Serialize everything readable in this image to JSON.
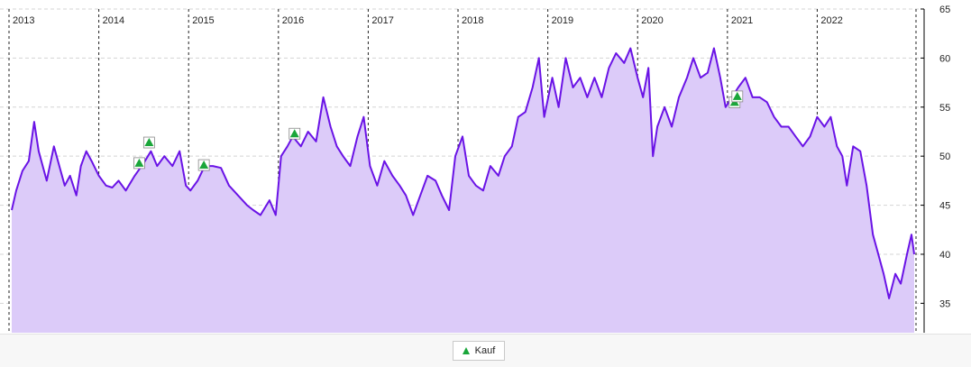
{
  "chart_data": {
    "type": "area",
    "x_labels": [
      "2013",
      "2014",
      "2015",
      "2016",
      "2017",
      "2018",
      "2019",
      "2020",
      "2021",
      "2022"
    ],
    "y_ticks": [
      35,
      40,
      45,
      50,
      55,
      60,
      65
    ],
    "ylim": [
      32,
      65
    ],
    "xlim": [
      2013.0,
      2023.1
    ],
    "grid": true,
    "legend_position": "bottom-center",
    "colors": {
      "line": "#6a13e6",
      "fill": "#dccbf9",
      "marker": "#1aa63a"
    },
    "series": [
      {
        "values": [
          [
            2013.03,
            44.5
          ],
          [
            2013.08,
            46.5
          ],
          [
            2013.15,
            48.5
          ],
          [
            2013.22,
            49.5
          ],
          [
            2013.28,
            53.5
          ],
          [
            2013.33,
            50.5
          ],
          [
            2013.42,
            47.5
          ],
          [
            2013.5,
            51
          ],
          [
            2013.56,
            49
          ],
          [
            2013.62,
            47
          ],
          [
            2013.68,
            48
          ],
          [
            2013.75,
            46
          ],
          [
            2013.8,
            49
          ],
          [
            2013.86,
            50.5
          ],
          [
            2013.92,
            49.5
          ],
          [
            2014.0,
            48
          ],
          [
            2014.08,
            47
          ],
          [
            2014.15,
            46.8
          ],
          [
            2014.22,
            47.5
          ],
          [
            2014.3,
            46.5
          ],
          [
            2014.4,
            48
          ],
          [
            2014.5,
            49.3
          ],
          [
            2014.58,
            50.5
          ],
          [
            2014.65,
            49
          ],
          [
            2014.73,
            50
          ],
          [
            2014.82,
            49
          ],
          [
            2014.9,
            50.5
          ],
          [
            2014.97,
            47
          ],
          [
            2015.02,
            46.5
          ],
          [
            2015.1,
            47.5
          ],
          [
            2015.18,
            49
          ],
          [
            2015.27,
            49
          ],
          [
            2015.36,
            48.8
          ],
          [
            2015.45,
            47
          ],
          [
            2015.55,
            46
          ],
          [
            2015.65,
            45
          ],
          [
            2015.72,
            44.5
          ],
          [
            2015.8,
            44
          ],
          [
            2015.9,
            45.5
          ],
          [
            2015.97,
            44
          ],
          [
            2016.03,
            50
          ],
          [
            2016.1,
            51
          ],
          [
            2016.16,
            52
          ],
          [
            2016.25,
            51
          ],
          [
            2016.33,
            52.5
          ],
          [
            2016.42,
            51.5
          ],
          [
            2016.5,
            56
          ],
          [
            2016.58,
            53
          ],
          [
            2016.65,
            51
          ],
          [
            2016.72,
            50
          ],
          [
            2016.8,
            49
          ],
          [
            2016.88,
            52
          ],
          [
            2016.95,
            54
          ],
          [
            2017.02,
            49
          ],
          [
            2017.1,
            47
          ],
          [
            2017.18,
            49.5
          ],
          [
            2017.27,
            48
          ],
          [
            2017.35,
            47
          ],
          [
            2017.42,
            46
          ],
          [
            2017.5,
            44
          ],
          [
            2017.58,
            46
          ],
          [
            2017.66,
            48
          ],
          [
            2017.75,
            47.5
          ],
          [
            2017.82,
            46
          ],
          [
            2017.9,
            44.5
          ],
          [
            2017.97,
            50
          ],
          [
            2018.05,
            52
          ],
          [
            2018.12,
            48
          ],
          [
            2018.2,
            47
          ],
          [
            2018.28,
            46.5
          ],
          [
            2018.36,
            49
          ],
          [
            2018.45,
            48
          ],
          [
            2018.52,
            50
          ],
          [
            2018.6,
            51
          ],
          [
            2018.67,
            54
          ],
          [
            2018.75,
            54.5
          ],
          [
            2018.83,
            57
          ],
          [
            2018.9,
            60
          ],
          [
            2018.96,
            54
          ],
          [
            2019.05,
            58
          ],
          [
            2019.12,
            55
          ],
          [
            2019.2,
            60
          ],
          [
            2019.28,
            57
          ],
          [
            2019.36,
            58
          ],
          [
            2019.44,
            56
          ],
          [
            2019.52,
            58
          ],
          [
            2019.6,
            56
          ],
          [
            2019.68,
            59
          ],
          [
            2019.76,
            60.5
          ],
          [
            2019.85,
            59.5
          ],
          [
            2019.92,
            61
          ],
          [
            2020.0,
            58
          ],
          [
            2020.06,
            56
          ],
          [
            2020.12,
            59
          ],
          [
            2020.17,
            50
          ],
          [
            2020.22,
            53
          ],
          [
            2020.3,
            55
          ],
          [
            2020.38,
            53
          ],
          [
            2020.46,
            56
          ],
          [
            2020.55,
            58
          ],
          [
            2020.62,
            60
          ],
          [
            2020.7,
            58
          ],
          [
            2020.78,
            58.5
          ],
          [
            2020.85,
            61
          ],
          [
            2020.92,
            58
          ],
          [
            2020.98,
            55
          ],
          [
            2021.05,
            56
          ],
          [
            2021.12,
            57
          ],
          [
            2021.2,
            58
          ],
          [
            2021.28,
            56
          ],
          [
            2021.36,
            56
          ],
          [
            2021.44,
            55.5
          ],
          [
            2021.52,
            54
          ],
          [
            2021.6,
            53
          ],
          [
            2021.68,
            53
          ],
          [
            2021.76,
            52
          ],
          [
            2021.84,
            51
          ],
          [
            2021.92,
            52
          ],
          [
            2022.0,
            54
          ],
          [
            2022.08,
            53
          ],
          [
            2022.15,
            54
          ],
          [
            2022.22,
            51
          ],
          [
            2022.28,
            50
          ],
          [
            2022.33,
            47
          ],
          [
            2022.4,
            51
          ],
          [
            2022.48,
            50.5
          ],
          [
            2022.55,
            47
          ],
          [
            2022.62,
            42
          ],
          [
            2022.68,
            40
          ],
          [
            2022.74,
            38
          ],
          [
            2022.8,
            35.5
          ],
          [
            2022.87,
            38
          ],
          [
            2022.93,
            37
          ],
          [
            2023.0,
            40
          ],
          [
            2023.05,
            42
          ],
          [
            2023.08,
            40
          ]
        ]
      }
    ],
    "markers": {
      "label": "Kauf",
      "points": [
        [
          2014.45,
          49.2
        ],
        [
          2014.56,
          51.3
        ],
        [
          2015.17,
          49.0
        ],
        [
          2016.18,
          52.2
        ],
        [
          2021.08,
          55.4
        ],
        [
          2021.11,
          56.0
        ]
      ]
    }
  }
}
